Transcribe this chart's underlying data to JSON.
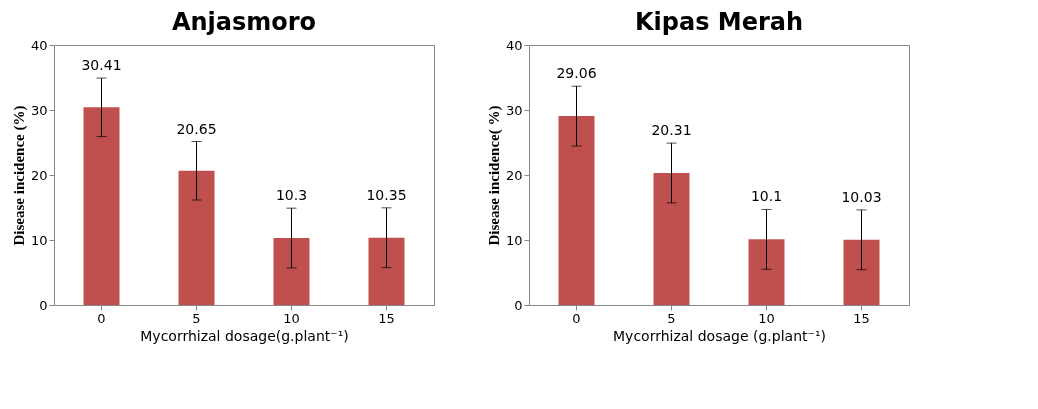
{
  "chart_data": [
    {
      "type": "bar",
      "title": "Anjasmoro",
      "xlabel": "Mycorrhizal dosage(g.plant⁻¹)",
      "ylabel": "Disease incidence (%)",
      "categories": [
        "0",
        "5",
        "10",
        "15"
      ],
      "series": [
        {
          "color": "#c0504d",
          "values": [
            30.41,
            20.65,
            10.3,
            10.35
          ],
          "errors": [
            4.5,
            4.5,
            4.6,
            4.6
          ]
        }
      ],
      "ylim": [
        0,
        40
      ],
      "yticks": [
        0,
        10,
        20,
        30,
        40
      ],
      "data_labels": true,
      "grid": false
    },
    {
      "type": "bar",
      "title": "Kipas Merah",
      "xlabel": "Mycorrhizal dosage (g.plant⁻¹)",
      "ylabel": "Disease incidence( %)",
      "categories": [
        "0",
        "5",
        "10",
        "15"
      ],
      "series": [
        {
          "color": "#c0504d",
          "values": [
            29.06,
            20.31,
            10.1,
            10.03
          ],
          "errors": [
            4.6,
            4.6,
            4.6,
            4.6
          ]
        }
      ],
      "ylim": [
        0,
        40
      ],
      "yticks": [
        0,
        10,
        20,
        30,
        40
      ],
      "data_labels": true,
      "grid": false
    }
  ]
}
